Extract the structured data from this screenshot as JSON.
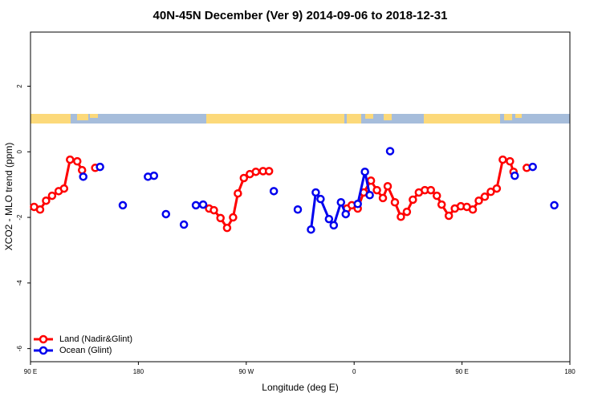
{
  "chart_data": {
    "type": "line",
    "title": "40N-45N December (Ver 9)   2014-09-06 to 2018-12-31",
    "x_label": "Longitude (deg E)",
    "y_label": "XCO2 - MLO trend (ppm)",
    "xlim": [
      90,
      540
    ],
    "xticks": [
      {
        "value": 90,
        "label": "90 E"
      },
      180,
      {
        "value": 270,
        "label": "90 W"
      },
      {
        "value": 360,
        "label": "0"
      },
      {
        "value": 450,
        "label": "90 E"
      },
      {
        "value": 540,
        "label": "180"
      }
    ],
    "ylim": [
      -6.4,
      3.65
    ],
    "yticks": [
      -6,
      -4,
      -2,
      0,
      2
    ],
    "legend": "bottomleft",
    "series": [
      {
        "name": "Land (Nadir&Glint)",
        "color": "#ff0000",
        "x": [
          93,
          98,
          103,
          108,
          113.5,
          118,
          123,
          129,
          133,
          null,
          144,
          null,
          239,
          243,
          248.5,
          254,
          259,
          263,
          268,
          273,
          278,
          284,
          289,
          null,
          354,
          358,
          363,
          368,
          374,
          379,
          384,
          388,
          394,
          399,
          404,
          409,
          414,
          419,
          424,
          429,
          433,
          439,
          444,
          449,
          454,
          459,
          464,
          469,
          474,
          479,
          484,
          490,
          493,
          null,
          504
        ],
        "values": [
          -1.68,
          -1.76,
          -1.49,
          -1.34,
          -1.2,
          -1.12,
          -0.24,
          -0.29,
          -0.56,
          null,
          -0.49,
          null,
          -1.73,
          -1.78,
          -2.02,
          -2.32,
          -2.0,
          -1.27,
          -0.8,
          -0.68,
          -0.61,
          -0.59,
          -0.59,
          null,
          -1.73,
          -1.63,
          -1.73,
          -1.24,
          -0.88,
          -1.17,
          -1.41,
          -1.05,
          -1.54,
          -1.98,
          -1.83,
          -1.46,
          -1.24,
          -1.17,
          -1.17,
          -1.34,
          -1.61,
          -1.95,
          -1.73,
          -1.66,
          -1.68,
          -1.76,
          -1.49,
          -1.37,
          -1.22,
          -1.12,
          -0.24,
          -0.29,
          -0.61,
          null,
          -0.49
        ]
      },
      {
        "name": "Ocean (Glint)",
        "color": "#0000ee",
        "x": [
          134,
          null,
          148,
          null,
          167,
          null,
          188,
          null,
          193,
          null,
          203,
          null,
          218,
          null,
          228,
          null,
          234,
          null,
          293,
          null,
          313,
          null,
          324,
          328,
          332,
          339,
          343,
          349,
          353,
          null,
          363,
          369,
          373,
          null,
          390,
          null,
          494,
          null,
          509,
          null,
          527
        ],
        "values": [
          -0.76,
          null,
          -0.46,
          null,
          -1.63,
          null,
          -0.76,
          null,
          -0.73,
          null,
          -1.9,
          null,
          -2.22,
          null,
          -1.63,
          null,
          -1.61,
          null,
          -1.2,
          null,
          -1.76,
          null,
          -2.37,
          -1.24,
          -1.44,
          -2.05,
          -2.24,
          -1.54,
          -1.9,
          null,
          -1.59,
          -0.61,
          -1.32,
          null,
          0.02,
          null,
          -0.73,
          null,
          -0.46,
          null,
          -1.63
        ]
      }
    ]
  }
}
